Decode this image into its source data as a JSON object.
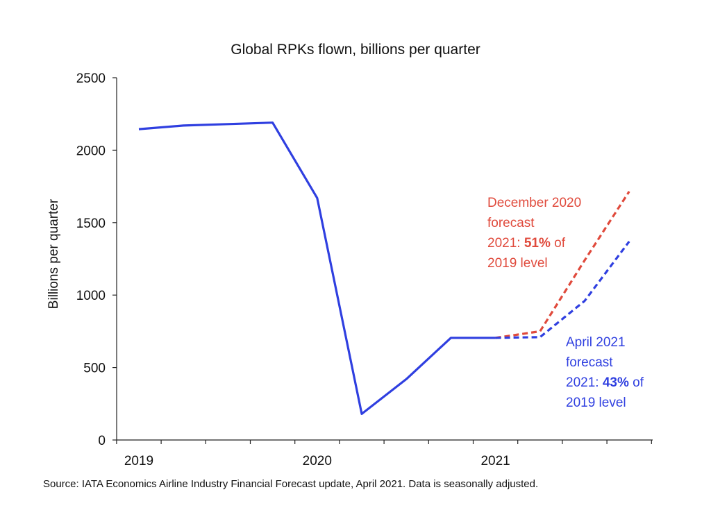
{
  "chart_data": {
    "type": "line",
    "title": "Global RPKs flown, billions per quarter",
    "ylabel": "Billions per quarter",
    "xlabel": "",
    "ylim": [
      0,
      2500
    ],
    "yticks": [
      "0",
      "500",
      "1000",
      "1500",
      "2000",
      "2500"
    ],
    "year_labels": [
      "2019",
      "2020",
      "2021"
    ],
    "quarters": [
      "2019 Q1",
      "2019 Q2",
      "2019 Q3",
      "2019 Q4",
      "2020 Q1",
      "2020 Q2",
      "2020 Q3",
      "2020 Q4",
      "2021 Q1",
      "2021 Q2",
      "2021 Q3",
      "2021 Q4"
    ],
    "grid": false,
    "series": [
      {
        "key": "actual",
        "color": "#2f3fe0",
        "style": "solid",
        "points": [
          {
            "x": "2019 Q1",
            "y": 2145
          },
          {
            "x": "2019 Q2",
            "y": 2170
          },
          {
            "x": "2019 Q3",
            "y": 2180
          },
          {
            "x": "2019 Q4",
            "y": 2190
          },
          {
            "x": "2020 Q1",
            "y": 1670
          },
          {
            "x": "2020 Q2",
            "y": 180
          },
          {
            "x": "2020 Q3",
            "y": 420
          },
          {
            "x": "2020 Q4",
            "y": 705
          },
          {
            "x": "2021 Q1",
            "y": 705
          }
        ]
      },
      {
        "key": "dec2020",
        "color": "#e04a3c",
        "style": "dashed",
        "points": [
          {
            "x": "2021 Q1",
            "y": 705
          },
          {
            "x": "2021 Q2",
            "y": 750
          },
          {
            "x": "2021 Q3",
            "y": 1240
          },
          {
            "x": "2021 Q4",
            "y": 1715
          }
        ]
      },
      {
        "key": "apr2021",
        "color": "#2f3fe0",
        "style": "dashed",
        "points": [
          {
            "x": "2021 Q1",
            "y": 705
          },
          {
            "x": "2021 Q2",
            "y": 710
          },
          {
            "x": "2021 Q3",
            "y": 960
          },
          {
            "x": "2021 Q4",
            "y": 1370
          }
        ]
      }
    ],
    "annotations": {
      "dec": {
        "color": "#e04a3c",
        "line1": "December 2020",
        "line2": "forecast",
        "line3_pre": "2021: ",
        "line3_bold": "51%",
        "line3_post": " of",
        "line4": "2019 level"
      },
      "apr": {
        "color": "#2f3fe0",
        "line1": "April 2021",
        "line2": "forecast",
        "line3_pre": "2021: ",
        "line3_bold": "43%",
        "line3_post": " of",
        "line4": "2019 level"
      }
    }
  },
  "source_note": "Source: IATA Economics Airline Industry Financial Forecast update, April 2021. Data is seasonally adjusted."
}
